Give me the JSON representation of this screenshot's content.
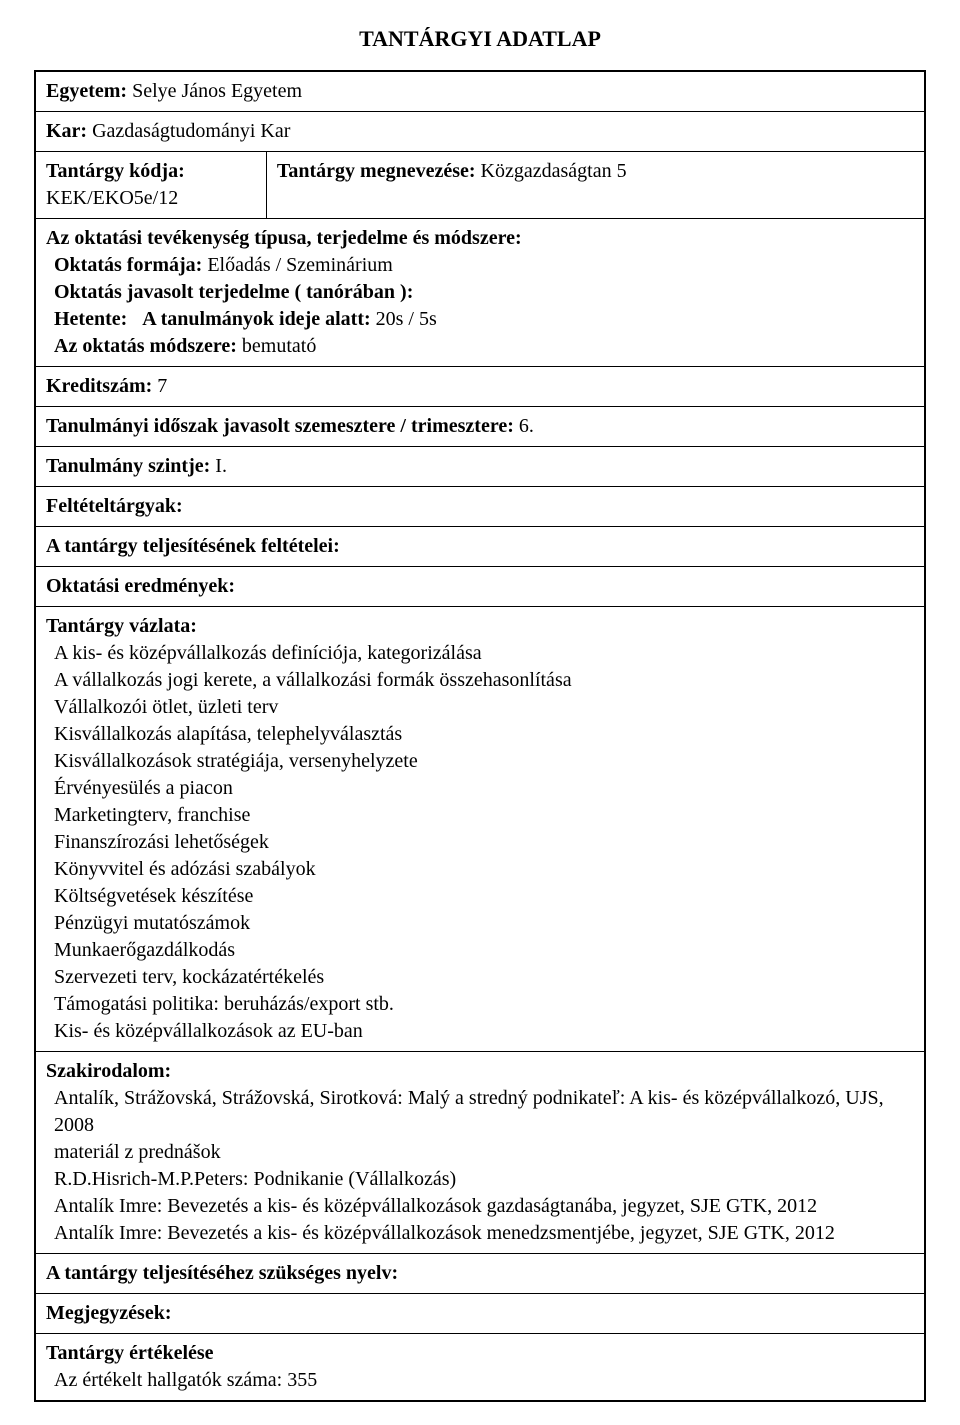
{
  "fontsizes": {
    "title": 22,
    "body": 20
  },
  "colors": {
    "text": "#000000",
    "bg": "#ffffff",
    "border": "#000000"
  },
  "title": "TANTÁRGYI ADATLAP",
  "university": {
    "label": "Egyetem:",
    "value": "Selye János Egyetem"
  },
  "faculty": {
    "label": "Kar:",
    "value": "Gazdaságtudományi Kar"
  },
  "course_code": {
    "label": "Tantárgy kódja:",
    "value": "KEK/EKO5e/12"
  },
  "course_name": {
    "label": "Tantárgy megnevezése:",
    "value": "Közgazdaságtan 5"
  },
  "activity": {
    "header": "Az oktatási tevékenység típusa, terjedelme és módszere:",
    "line1_label": "Oktatás formája:",
    "line1_value": "Előadás / Szeminárium",
    "line2_label": "Oktatás javasolt terjedelme ( tanórában ):",
    "line3_label": "Hetente:",
    "line3_mid": "A tanulmányok ideje alatt:",
    "line3_value": "20s / 5s",
    "line4_label": "Az oktatás módszere:",
    "line4_value": "bemutató"
  },
  "credits": {
    "label": "Kreditszám:",
    "value": "7"
  },
  "period": {
    "label": "Tanulmányi időszak javasolt szemesztere / trimesztere:",
    "value": "6."
  },
  "level": {
    "label": "Tanulmány szintje:",
    "value": "I."
  },
  "prereq": {
    "label": "Feltételtárgyak:"
  },
  "completion": {
    "label": "A tantárgy teljesítésének feltételei:"
  },
  "outcomes": {
    "label": "Oktatási eredmények:"
  },
  "outline": {
    "label": "Tantárgy vázlata:",
    "items": [
      "A kis- és középvállalkozás definíciója, kategorizálása",
      "A vállalkozás jogi kerete, a vállalkozási formák összehasonlítása",
      "Vállalkozói ötlet, üzleti terv",
      "Kisvállalkozás alapítása, telephelyválasztás",
      "Kisvállalkozások stratégiája, versenyhelyzete",
      "Érvényesülés a piacon",
      "Marketingterv, franchise",
      "Finanszírozási lehetőségek",
      "Könyvvitel és adózási szabályok",
      "Költségvetések készítése",
      "Pénzügyi mutatószámok",
      "Munkaerőgazdálkodás",
      "Szervezeti terv, kockázatértékelés",
      "Támogatási politika: beruházás/export stb.",
      "Kis- és középvállalkozások az EU-ban"
    ]
  },
  "literature": {
    "label": "Szakirodalom:",
    "items": [
      "Antalík, Strážovská, Strážovská, Sirotková: Malý a stredný podnikateľ: A kis- és középvállalkozó, UJS, 2008",
      "materiál z prednášok",
      "R.D.Hisrich-M.P.Peters: Podnikanie (Vállalkozás)",
      "Antalík Imre: Bevezetés a kis- és középvállalkozások gazdaságtanába, jegyzet, SJE GTK, 2012",
      "Antalík Imre: Bevezetés a kis- és középvállalkozások menedzsmentjébe, jegyzet, SJE GTK, 2012"
    ]
  },
  "language": {
    "label": "A tantárgy teljesítéséhez szükséges nyelv:"
  },
  "notes": {
    "label": "Megjegyzések:"
  },
  "evaluation": {
    "label": "Tantárgy értékelése",
    "count_label": "Az értékelt hallgatók száma:",
    "count_value": "355"
  }
}
